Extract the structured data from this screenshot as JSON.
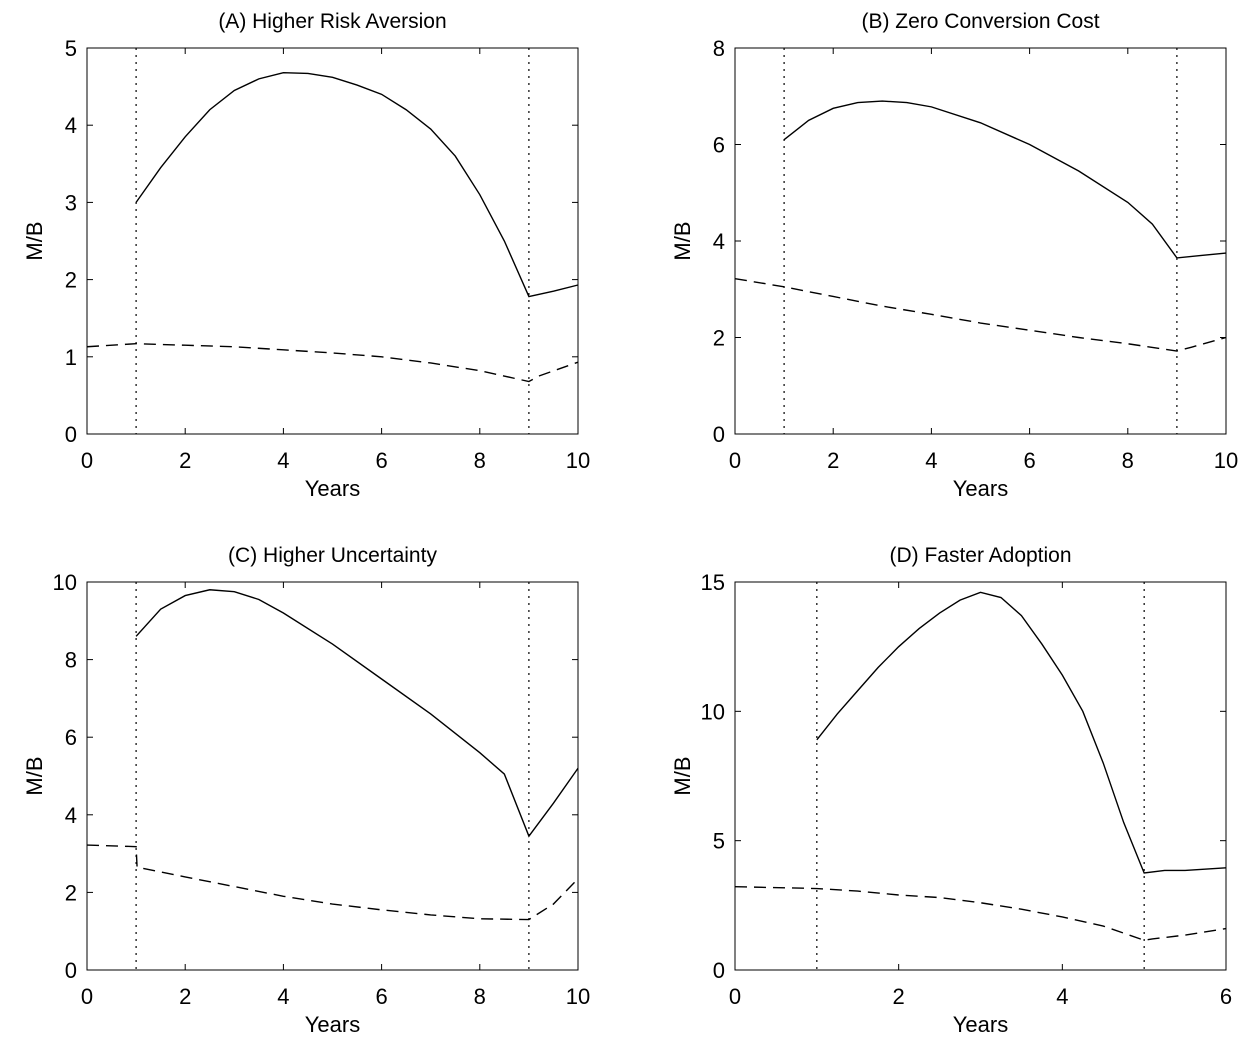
{
  "chart_data": [
    {
      "type": "line",
      "title": "(A) Higher Risk Aversion",
      "x_label": "Years",
      "y_label": "M/B",
      "xlim": [
        0,
        10
      ],
      "ylim": [
        0,
        5
      ],
      "xticks": [
        0,
        2,
        4,
        6,
        8,
        10
      ],
      "yticks": [
        0,
        1,
        2,
        3,
        4,
        5
      ],
      "vlines": [
        1,
        9
      ],
      "series": [
        {
          "color": "#000000",
          "style": "solid",
          "x": [
            1,
            1.5,
            2,
            2.5,
            3,
            3.5,
            4,
            4.5,
            5,
            5.5,
            6,
            6.5,
            7,
            7.5,
            8,
            8.5,
            9,
            9.5,
            10
          ],
          "values": [
            3.0,
            3.45,
            3.85,
            4.2,
            4.45,
            4.6,
            4.68,
            4.67,
            4.62,
            4.52,
            4.4,
            4.2,
            3.95,
            3.6,
            3.1,
            2.5,
            1.78,
            1.85,
            1.93
          ]
        },
        {
          "color": "#000000",
          "style": "dashed",
          "x": [
            0,
            1,
            2,
            3,
            4,
            5,
            6,
            7,
            8,
            9,
            9.2,
            10
          ],
          "values": [
            1.13,
            1.17,
            1.15,
            1.13,
            1.09,
            1.05,
            1.0,
            0.92,
            0.82,
            0.68,
            0.75,
            0.93
          ]
        }
      ]
    },
    {
      "type": "line",
      "title": "(B) Zero Conversion Cost",
      "x_label": "Years",
      "y_label": "M/B",
      "xlim": [
        0,
        10
      ],
      "ylim": [
        0,
        8
      ],
      "xticks": [
        0,
        2,
        4,
        6,
        8,
        10
      ],
      "yticks": [
        0,
        2,
        4,
        6,
        8
      ],
      "vlines": [
        1,
        9
      ],
      "series": [
        {
          "color": "#000000",
          "style": "solid",
          "x": [
            1,
            1.5,
            2,
            2.5,
            3,
            3.5,
            4,
            5,
            6,
            7,
            8,
            8.5,
            9,
            9.5,
            10
          ],
          "values": [
            6.1,
            6.5,
            6.75,
            6.87,
            6.9,
            6.87,
            6.78,
            6.45,
            6.0,
            5.45,
            4.8,
            4.35,
            3.65,
            3.7,
            3.75
          ]
        },
        {
          "color": "#000000",
          "style": "dashed",
          "x": [
            0,
            1,
            2,
            3,
            4,
            5,
            6,
            7,
            8,
            9,
            9.3,
            10
          ],
          "values": [
            3.22,
            3.05,
            2.85,
            2.65,
            2.48,
            2.3,
            2.15,
            2.0,
            1.87,
            1.72,
            1.8,
            2.0
          ]
        }
      ]
    },
    {
      "type": "line",
      "title": "(C) Higher Uncertainty",
      "x_label": "Years",
      "y_label": "M/B",
      "xlim": [
        0,
        10
      ],
      "ylim": [
        0,
        10
      ],
      "xticks": [
        0,
        2,
        4,
        6,
        8,
        10
      ],
      "yticks": [
        0,
        2,
        4,
        6,
        8,
        10
      ],
      "vlines": [
        1,
        9
      ],
      "series": [
        {
          "color": "#000000",
          "style": "solid",
          "x": [
            1,
            1.5,
            2,
            2.5,
            3,
            3.5,
            4,
            5,
            6,
            7,
            8,
            8.5,
            9,
            9.5,
            10
          ],
          "values": [
            8.6,
            9.3,
            9.65,
            9.8,
            9.75,
            9.55,
            9.2,
            8.4,
            7.5,
            6.6,
            5.6,
            5.05,
            3.45,
            4.3,
            5.2
          ]
        },
        {
          "color": "#000000",
          "style": "dashed",
          "x": [
            0,
            1,
            1.02,
            2,
            3,
            4,
            5,
            6,
            7,
            8,
            9,
            9.5,
            10
          ],
          "values": [
            3.22,
            3.18,
            2.65,
            2.4,
            2.15,
            1.9,
            1.7,
            1.55,
            1.42,
            1.32,
            1.3,
            1.7,
            2.35
          ]
        }
      ]
    },
    {
      "type": "line",
      "title": "(D) Faster Adoption",
      "x_label": "Years",
      "y_label": "M/B",
      "xlim": [
        0,
        6
      ],
      "ylim": [
        0,
        15
      ],
      "xticks": [
        0,
        2,
        4,
        6
      ],
      "yticks": [
        0,
        5,
        10,
        15
      ],
      "vlines": [
        1,
        5
      ],
      "series": [
        {
          "color": "#000000",
          "style": "solid",
          "x": [
            1,
            1.25,
            1.5,
            1.75,
            2,
            2.25,
            2.5,
            2.75,
            3,
            3.25,
            3.5,
            3.75,
            4,
            4.25,
            4.5,
            4.75,
            5,
            5.25,
            5.5,
            6
          ],
          "values": [
            8.9,
            9.9,
            10.8,
            11.7,
            12.5,
            13.2,
            13.8,
            14.3,
            14.6,
            14.4,
            13.7,
            12.6,
            11.4,
            10.0,
            8.0,
            5.7,
            3.75,
            3.85,
            3.85,
            3.95
          ]
        },
        {
          "color": "#000000",
          "style": "dashed",
          "x": [
            0,
            1,
            1.5,
            2,
            2.5,
            3,
            3.5,
            4,
            4.5,
            5,
            5.1,
            5.5,
            6
          ],
          "values": [
            3.22,
            3.15,
            3.05,
            2.9,
            2.8,
            2.6,
            2.35,
            2.05,
            1.7,
            1.15,
            1.2,
            1.35,
            1.6
          ]
        }
      ]
    }
  ]
}
